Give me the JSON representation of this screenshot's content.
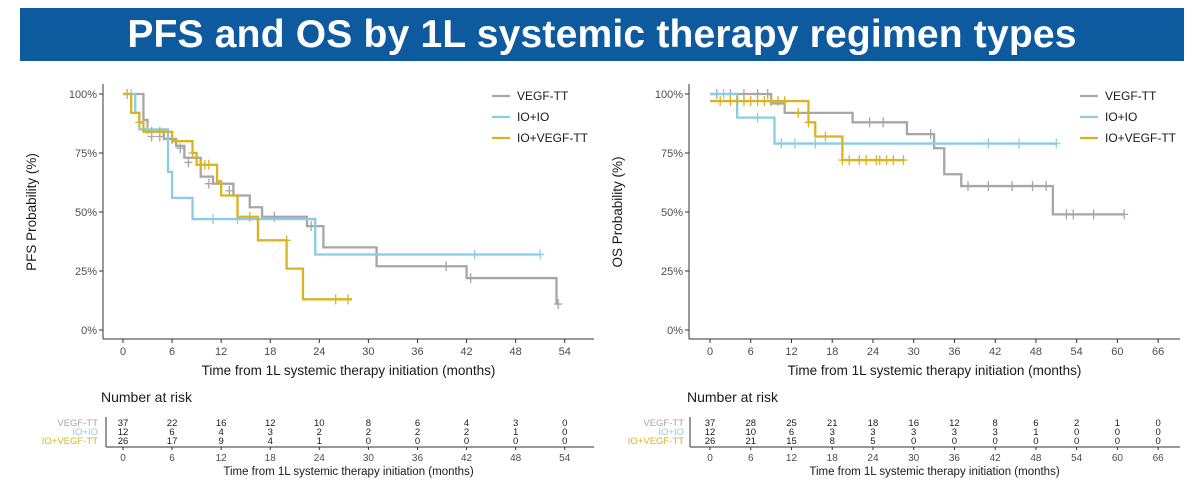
{
  "title": "PFS and OS by 1L systemic therapy regimen types",
  "colors": {
    "VEGF-TT": "#a6a6a6",
    "IO+IO": "#8ccbe6",
    "IO+VEGF-TT": "#dbb221",
    "banner": "#0d5a9f"
  },
  "chart_data": [
    {
      "type": "line",
      "subtype": "kaplan-meier",
      "ylabel": "PFS Probability (%)",
      "xlabel": "Time from 1L systemic therapy initiation (months)",
      "yticks": [
        "0%",
        "25%",
        "50%",
        "75%",
        "100%"
      ],
      "ytick_values": [
        0,
        25,
        50,
        75,
        100
      ],
      "xticks": [
        0,
        6,
        12,
        18,
        24,
        30,
        36,
        42,
        48,
        54
      ],
      "xlim": [
        -2,
        55
      ],
      "ylim": [
        0,
        100
      ],
      "legend": [
        "VEGF-TT",
        "IO+IO",
        "IO+VEGF-TT"
      ],
      "legend_position": "top-right",
      "series": [
        {
          "name": "VEGF-TT",
          "steps": [
            [
              0,
              100
            ],
            [
              2.5,
              89
            ],
            [
              3,
              84
            ],
            [
              5,
              81
            ],
            [
              6.5,
              78
            ],
            [
              7.5,
              73
            ],
            [
              9.5,
              65
            ],
            [
              11,
              62
            ],
            [
              13.5,
              57
            ],
            [
              15.5,
              52
            ],
            [
              17,
              48
            ],
            [
              22.5,
              44
            ],
            [
              24.5,
              35
            ],
            [
              31,
              27
            ],
            [
              42,
              22
            ],
            [
              53,
              11
            ]
          ],
          "censor": [
            [
              0.5,
              100
            ],
            [
              3.5,
              82
            ],
            [
              4.5,
              82
            ],
            [
              6,
              81
            ],
            [
              7,
              77
            ],
            [
              8,
              71
            ],
            [
              10.5,
              62
            ],
            [
              13,
              59
            ],
            [
              18.5,
              48
            ],
            [
              23,
              44
            ],
            [
              39.5,
              27
            ],
            [
              42.5,
              22
            ],
            [
              53.2,
              11
            ]
          ]
        },
        {
          "name": "IO+IO",
          "steps": [
            [
              0,
              100
            ],
            [
              1.5,
              92
            ],
            [
              2,
              85
            ],
            [
              5.5,
              67
            ],
            [
              6,
              56
            ],
            [
              8.5,
              47
            ],
            [
              23.5,
              32
            ],
            [
              51,
              32
            ]
          ],
          "censor": [
            [
              1,
              100
            ],
            [
              3,
              85
            ],
            [
              11,
              47
            ],
            [
              14,
              47
            ],
            [
              43,
              32
            ],
            [
              51,
              32
            ]
          ]
        },
        {
          "name": "IO+VEGF-TT",
          "steps": [
            [
              0,
              100
            ],
            [
              1,
              92
            ],
            [
              2,
              88
            ],
            [
              2.5,
              84
            ],
            [
              6,
              80
            ],
            [
              8.5,
              75
            ],
            [
              9,
              70
            ],
            [
              11.5,
              63
            ],
            [
              12,
              57
            ],
            [
              14,
              48
            ],
            [
              16.5,
              38
            ],
            [
              20,
              26
            ],
            [
              22,
              13
            ],
            [
              28,
              13
            ]
          ],
          "censor": [
            [
              2,
              88
            ],
            [
              3.5,
              84
            ],
            [
              4.5,
              84
            ],
            [
              8.5,
              75
            ],
            [
              9.5,
              70
            ],
            [
              10,
              70
            ],
            [
              10.5,
              70
            ],
            [
              15.5,
              48
            ],
            [
              20,
              38
            ],
            [
              26,
              13
            ],
            [
              27.5,
              13
            ]
          ]
        }
      ],
      "risk_table": {
        "title": "Number at risk",
        "xlabel": "Time from 1L systemic therapy initiation (months)",
        "rows": [
          {
            "name": "VEGF-TT",
            "values": [
              "37",
              "22",
              "16",
              "12",
              "10",
              "8",
              "6",
              "4",
              "3",
              "0"
            ]
          },
          {
            "name": "IO+IO",
            "values": [
              "12",
              "6",
              "4",
              "3",
              "2",
              "2",
              "2",
              "2",
              "1",
              "0"
            ]
          },
          {
            "name": "IO+VEGF-TT",
            "values": [
              "26",
              "17",
              "9",
              "4",
              "1",
              "0",
              "0",
              "0",
              "0",
              "0"
            ]
          }
        ]
      }
    },
    {
      "type": "line",
      "subtype": "kaplan-meier",
      "ylabel": "OS Probability (%)",
      "xlabel": "Time from 1L systemic therapy initiation (months)",
      "yticks": [
        "0%",
        "25%",
        "50%",
        "75%",
        "100%"
      ],
      "ytick_values": [
        0,
        25,
        50,
        75,
        100
      ],
      "xticks": [
        0,
        6,
        12,
        18,
        24,
        30,
        36,
        42,
        48,
        54,
        60,
        66
      ],
      "xlim": [
        -2,
        68
      ],
      "ylim": [
        0,
        100
      ],
      "legend": [
        "VEGF-TT",
        "IO+IO",
        "IO+VEGF-TT"
      ],
      "legend_position": "top-right",
      "series": [
        {
          "name": "VEGF-TT",
          "steps": [
            [
              0,
              100
            ],
            [
              9,
              96
            ],
            [
              11,
              92
            ],
            [
              21,
              88
            ],
            [
              26,
              88
            ],
            [
              29,
              83
            ],
            [
              33,
              77
            ],
            [
              34.5,
              66
            ],
            [
              37,
              61
            ],
            [
              50.5,
              49
            ],
            [
              61,
              49
            ]
          ],
          "censor": [
            [
              1,
              100
            ],
            [
              3,
              100
            ],
            [
              5,
              100
            ],
            [
              7,
              100
            ],
            [
              8.5,
              100
            ],
            [
              23.5,
              88
            ],
            [
              25.5,
              88
            ],
            [
              32.5,
              83
            ],
            [
              38,
              61
            ],
            [
              41,
              61
            ],
            [
              44.5,
              61
            ],
            [
              47.5,
              61
            ],
            [
              49.5,
              61
            ],
            [
              52.5,
              49
            ],
            [
              53.5,
              49
            ],
            [
              56.5,
              49
            ],
            [
              61,
              49
            ]
          ]
        },
        {
          "name": "IO+IO",
          "steps": [
            [
              0,
              100
            ],
            [
              4,
              90
            ],
            [
              9.5,
              79
            ],
            [
              51,
              79
            ]
          ],
          "censor": [
            [
              2,
              100
            ],
            [
              7,
              90
            ],
            [
              10.5,
              79
            ],
            [
              12.5,
              79
            ],
            [
              15.5,
              79
            ],
            [
              41,
              79
            ],
            [
              45.5,
              79
            ],
            [
              51,
              79
            ]
          ]
        },
        {
          "name": "IO+VEGF-TT",
          "steps": [
            [
              0,
              97
            ],
            [
              6.5,
              97
            ],
            [
              7,
              97
            ],
            [
              13,
              97
            ],
            [
              14.5,
              88
            ],
            [
              15.5,
              82
            ],
            [
              19.5,
              72
            ],
            [
              28.5,
              72
            ]
          ],
          "censor": [
            [
              1.5,
              97
            ],
            [
              3,
              97
            ],
            [
              4,
              97
            ],
            [
              5,
              97
            ],
            [
              6,
              97
            ],
            [
              7,
              97
            ],
            [
              8,
              97
            ],
            [
              9,
              97
            ],
            [
              10,
              97
            ],
            [
              11,
              97
            ],
            [
              13,
              92
            ],
            [
              14.5,
              88
            ],
            [
              17,
              82
            ],
            [
              19.5,
              72
            ],
            [
              20.5,
              72
            ],
            [
              22,
              72
            ],
            [
              23,
              72
            ],
            [
              24.5,
              72
            ],
            [
              25,
              72
            ],
            [
              26,
              72
            ],
            [
              27,
              72
            ],
            [
              28.5,
              72
            ]
          ]
        }
      ],
      "risk_table": {
        "title": "Number at risk",
        "xlabel": "Time from 1L systemic therapy initiation (months)",
        "rows": [
          {
            "name": "VEGF-TT",
            "values": [
              "37",
              "28",
              "25",
              "21",
              "18",
              "16",
              "12",
              "8",
              "6",
              "2",
              "1",
              "0"
            ]
          },
          {
            "name": "IO+IO",
            "values": [
              "12",
              "10",
              "6",
              "3",
              "3",
              "3",
              "3",
              "3",
              "1",
              "0",
              "0",
              "0"
            ]
          },
          {
            "name": "IO+VEGF-TT",
            "values": [
              "26",
              "21",
              "15",
              "8",
              "5",
              "0",
              "0",
              "0",
              "0",
              "0",
              "0",
              "0"
            ]
          }
        ]
      }
    }
  ]
}
